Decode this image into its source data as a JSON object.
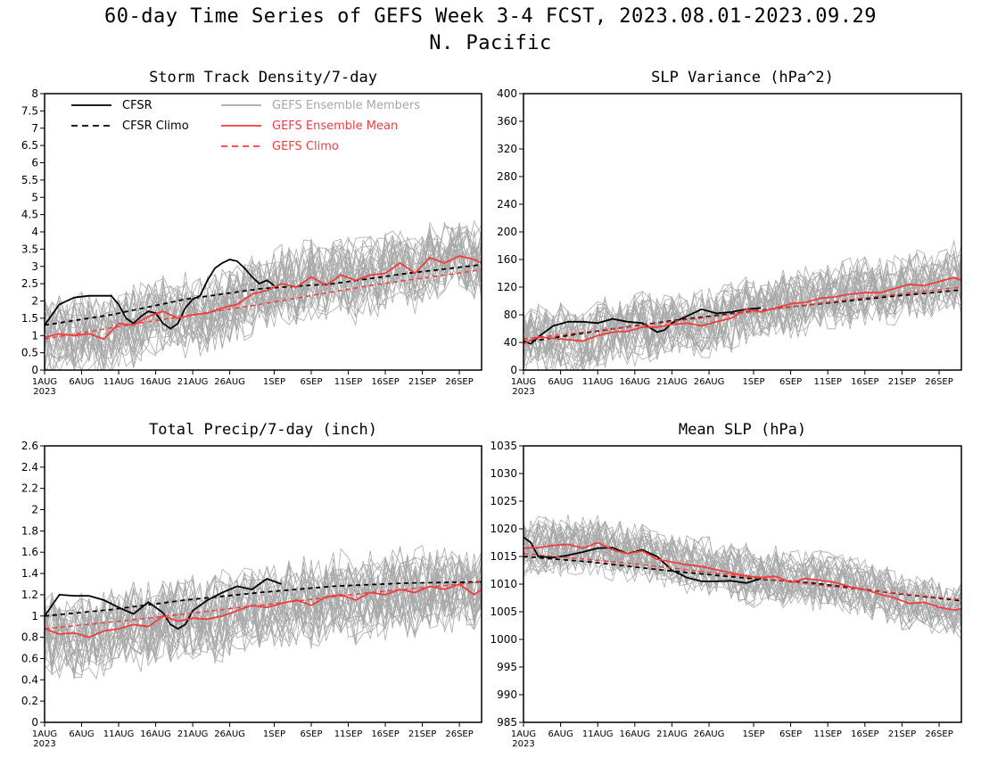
{
  "header": {
    "title": "60-day Time Series of GEFS Week 3-4 FCST, 2023.08.01-2023.09.29",
    "subtitle": "N. Pacific"
  },
  "colors": {
    "cfsr": "#000000",
    "members": "#a8a8a8",
    "ens_mean": "#f03c3c",
    "gefs_climo": "#f03c3c"
  },
  "legend": [
    {
      "label": "CFSR",
      "style": "solid",
      "color": "#000000"
    },
    {
      "label": "CFSR Climo",
      "style": "dashed",
      "color": "#000000"
    },
    {
      "label": "GEFS Ensemble Members",
      "style": "solid",
      "color": "#a8a8a8"
    },
    {
      "label": "GEFS Ensemble Mean",
      "style": "solid",
      "color": "#f03c3c"
    },
    {
      "label": "GEFS Climo",
      "style": "dashed",
      "color": "#f03c3c"
    }
  ],
  "x_ticks": {
    "days": [
      1,
      6,
      11,
      16,
      21,
      26,
      32,
      37,
      42,
      47,
      52,
      57
    ],
    "labels": [
      "1AUG",
      "6AUG",
      "11AUG",
      "16AUG",
      "21AUG",
      "26AUG",
      "1SEP",
      "6SEP",
      "11SEP",
      "16SEP",
      "21SEP",
      "26SEP"
    ],
    "year_label": "2023"
  },
  "chart_data": [
    {
      "type": "line",
      "title": "Storm Track Density/7-day",
      "x_range": [
        1,
        60
      ],
      "ylim": [
        0,
        8
      ],
      "yticks": [
        0,
        0.5,
        1,
        1.5,
        2,
        2.5,
        3,
        3.5,
        4,
        4.5,
        5,
        5.5,
        6,
        6.5,
        7,
        7.5,
        8
      ],
      "ytick_labels": [
        "0",
        "0.5",
        "1",
        "1.5",
        "2",
        "2.5",
        "3",
        "3.5",
        "4",
        "4.5",
        "5",
        "5.5",
        "6",
        "6.5",
        "7",
        "7.5",
        "8"
      ],
      "legend_placement": "top-left",
      "series": [
        {
          "name": "CFSR",
          "x": [
            1,
            3,
            5,
            7,
            9,
            10,
            11,
            12,
            13,
            14,
            15,
            16,
            17,
            18,
            19,
            20,
            21,
            22,
            23,
            24,
            25,
            26,
            27,
            28,
            29,
            30,
            31,
            32
          ],
          "values": [
            1.3,
            1.9,
            2.1,
            2.15,
            2.15,
            2.15,
            1.9,
            1.5,
            1.35,
            1.55,
            1.7,
            1.65,
            1.35,
            1.2,
            1.35,
            1.8,
            2.05,
            2.15,
            2.6,
            2.95,
            3.1,
            3.2,
            3.15,
            2.95,
            2.7,
            2.5,
            2.6,
            2.45
          ]
        },
        {
          "name": "CFSR Climo",
          "x": [
            1,
            10,
            20,
            30,
            40,
            50,
            60
          ],
          "values": [
            1.3,
            1.6,
            2.05,
            2.35,
            2.5,
            2.8,
            3.05
          ]
        },
        {
          "name": "GEFS Ensemble Mean",
          "x": [
            1,
            3,
            5,
            7,
            9,
            11,
            13,
            15,
            17,
            19,
            21,
            23,
            25,
            27,
            29,
            31,
            33,
            35,
            37,
            39,
            41,
            43,
            45,
            47,
            49,
            51,
            53,
            55,
            57,
            59,
            60
          ],
          "values": [
            0.95,
            1.05,
            1.0,
            1.05,
            0.9,
            1.35,
            1.3,
            1.55,
            1.7,
            1.5,
            1.6,
            1.65,
            1.8,
            1.9,
            2.2,
            2.3,
            2.5,
            2.4,
            2.7,
            2.45,
            2.75,
            2.6,
            2.75,
            2.8,
            3.1,
            2.8,
            3.25,
            3.1,
            3.3,
            3.2,
            3.1
          ]
        },
        {
          "name": "GEFS Climo",
          "x": [
            1,
            15,
            30,
            45,
            60
          ],
          "values": [
            0.9,
            1.4,
            1.9,
            2.45,
            2.9
          ]
        }
      ],
      "member_spread": {
        "center": "GEFS Ensemble Mean",
        "halfwidth": 1.3
      }
    },
    {
      "type": "line",
      "title": "SLP Variance (hPa^2)",
      "x_range": [
        1,
        60
      ],
      "ylim": [
        0,
        400
      ],
      "yticks": [
        0,
        40,
        80,
        120,
        160,
        200,
        240,
        280,
        320,
        360,
        400
      ],
      "ytick_labels": [
        "0",
        "40",
        "80",
        "120",
        "160",
        "200",
        "240",
        "280",
        "320",
        "360",
        "400"
      ],
      "series": [
        {
          "name": "CFSR",
          "x": [
            1,
            2,
            3,
            5,
            7,
            9,
            11,
            13,
            15,
            17,
            19,
            20,
            21,
            23,
            25,
            27,
            29,
            31,
            33
          ],
          "values": [
            42,
            38,
            48,
            64,
            70,
            70,
            68,
            74,
            70,
            68,
            55,
            58,
            68,
            78,
            88,
            82,
            84,
            88,
            90
          ]
        },
        {
          "name": "CFSR Climo",
          "x": [
            1,
            10,
            20,
            30,
            40,
            50,
            60
          ],
          "values": [
            40,
            55,
            70,
            83,
            95,
            106,
            116
          ]
        },
        {
          "name": "GEFS Ensemble Mean",
          "x": [
            1,
            3,
            5,
            7,
            9,
            11,
            13,
            15,
            17,
            19,
            21,
            23,
            25,
            27,
            29,
            31,
            33,
            35,
            37,
            39,
            41,
            43,
            45,
            47,
            49,
            51,
            53,
            55,
            57,
            59,
            60
          ],
          "values": [
            38,
            48,
            46,
            44,
            42,
            50,
            55,
            56,
            62,
            62,
            66,
            68,
            64,
            70,
            75,
            88,
            84,
            90,
            96,
            98,
            104,
            106,
            110,
            112,
            112,
            118,
            124,
            122,
            128,
            134,
            130
          ]
        },
        {
          "name": "GEFS Climo",
          "x": [
            1,
            15,
            30,
            45,
            60
          ],
          "values": [
            45,
            62,
            82,
            102,
            120
          ]
        }
      ],
      "member_spread": {
        "center": "GEFS Ensemble Mean",
        "halfwidth": 55
      }
    },
    {
      "type": "line",
      "title": "Total Precip/7-day (inch)",
      "x_range": [
        1,
        60
      ],
      "ylim": [
        0,
        2.6
      ],
      "yticks": [
        0,
        0.2,
        0.4,
        0.6,
        0.8,
        1,
        1.2,
        1.4,
        1.6,
        1.8,
        2,
        2.2,
        2.4,
        2.6
      ],
      "ytick_labels": [
        "0",
        "0.2",
        "0.4",
        "0.6",
        "0.8",
        "1",
        "1.2",
        "1.4",
        "1.6",
        "1.8",
        "2",
        "2.2",
        "2.4",
        "2.6"
      ],
      "series": [
        {
          "name": "CFSR",
          "x": [
            1,
            3,
            5,
            7,
            9,
            11,
            13,
            15,
            17,
            18,
            19,
            20,
            21,
            23,
            25,
            27,
            29,
            31,
            33
          ],
          "values": [
            1.0,
            1.2,
            1.19,
            1.19,
            1.15,
            1.08,
            1.02,
            1.13,
            1.03,
            0.92,
            0.88,
            0.92,
            1.05,
            1.15,
            1.22,
            1.28,
            1.25,
            1.35,
            1.3
          ]
        },
        {
          "name": "CFSR Climo",
          "x": [
            1,
            10,
            20,
            30,
            40,
            50,
            60
          ],
          "values": [
            1.0,
            1.06,
            1.15,
            1.22,
            1.28,
            1.31,
            1.32
          ]
        },
        {
          "name": "GEFS Ensemble Mean",
          "x": [
            1,
            3,
            5,
            7,
            9,
            11,
            13,
            15,
            17,
            19,
            21,
            23,
            25,
            27,
            29,
            31,
            33,
            35,
            37,
            39,
            41,
            43,
            45,
            47,
            49,
            51,
            53,
            55,
            57,
            59,
            60
          ],
          "values": [
            0.88,
            0.83,
            0.84,
            0.8,
            0.86,
            0.88,
            0.92,
            0.9,
            1.0,
            0.95,
            0.98,
            0.97,
            1.0,
            1.05,
            1.1,
            1.08,
            1.12,
            1.15,
            1.1,
            1.18,
            1.2,
            1.15,
            1.22,
            1.2,
            1.25,
            1.22,
            1.28,
            1.25,
            1.3,
            1.2,
            1.25
          ]
        },
        {
          "name": "GEFS Climo",
          "x": [
            1,
            15,
            30,
            45,
            60
          ],
          "values": [
            0.88,
            0.98,
            1.1,
            1.22,
            1.32
          ]
        }
      ],
      "member_spread": {
        "center": "GEFS Ensemble Mean",
        "halfwidth": 0.45
      }
    },
    {
      "type": "line",
      "title": "Mean SLP (hPa)",
      "x_range": [
        1,
        60
      ],
      "ylim": [
        985,
        1035
      ],
      "yticks": [
        985,
        990,
        995,
        1000,
        1005,
        1010,
        1015,
        1020,
        1025,
        1030,
        1035
      ],
      "ytick_labels": [
        "985",
        "990",
        "995",
        "1000",
        "1005",
        "1010",
        "1015",
        "1020",
        "1025",
        "1030",
        "1035"
      ],
      "series": [
        {
          "name": "CFSR",
          "x": [
            1,
            2,
            3,
            5,
            7,
            9,
            11,
            13,
            15,
            17,
            19,
            21,
            23,
            25,
            27,
            29,
            31,
            33
          ],
          "values": [
            1018.5,
            1017.5,
            1015,
            1014.8,
            1015.2,
            1015.8,
            1016.5,
            1016.6,
            1015.5,
            1016.2,
            1015,
            1012.5,
            1011.2,
            1010.5,
            1010.5,
            1010.6,
            1010.2,
            1011
          ]
        },
        {
          "name": "CFSR Climo",
          "x": [
            1,
            10,
            20,
            30,
            40,
            50,
            60
          ],
          "values": [
            1015,
            1014,
            1012.5,
            1011.2,
            1010.2,
            1008.5,
            1007
          ]
        },
        {
          "name": "GEFS Ensemble Mean",
          "x": [
            1,
            3,
            5,
            7,
            9,
            11,
            13,
            15,
            17,
            19,
            21,
            23,
            25,
            27,
            29,
            31,
            33,
            35,
            37,
            39,
            41,
            43,
            45,
            47,
            49,
            51,
            53,
            55,
            57,
            59,
            60
          ],
          "values": [
            1016.5,
            1016.6,
            1017,
            1017.2,
            1016.5,
            1017.5,
            1016.2,
            1015.5,
            1016,
            1014.5,
            1014,
            1013.5,
            1013.2,
            1012.6,
            1012,
            1011.5,
            1011.2,
            1011.4,
            1010.3,
            1011,
            1010.7,
            1010.3,
            1009.5,
            1009,
            1008.2,
            1007.5,
            1006.5,
            1006.7,
            1005.8,
            1005.3,
            1005.5
          ]
        },
        {
          "name": "GEFS Climo",
          "x": [
            1,
            15,
            30,
            45,
            60
          ],
          "values": [
            1015.5,
            1013.8,
            1011.5,
            1009.2,
            1007.2
          ]
        }
      ],
      "member_spread": {
        "center": "GEFS Ensemble Mean",
        "halfwidth": 6
      }
    }
  ]
}
